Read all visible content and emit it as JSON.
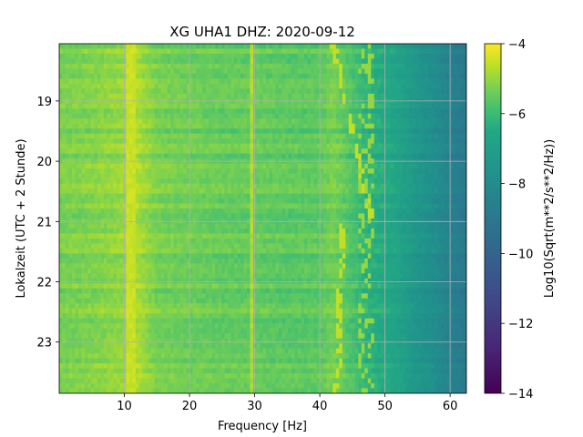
{
  "chart_data": {
    "type": "heatmap",
    "title": "XG UHA1  DHZ: 2020-09-12",
    "xlabel": "Frequency [Hz]",
    "ylabel": "Lokalzeit (UTC + 2 Stunde)",
    "xlim": [
      0,
      62.5
    ],
    "ylim": [
      18.05,
      23.85
    ],
    "y_inverted": true,
    "x_ticks": [
      10,
      20,
      30,
      40,
      50,
      60
    ],
    "y_ticks": [
      19,
      20,
      21,
      22,
      23
    ],
    "grid": true,
    "colorbar": {
      "label": "Log10(Sqrt(m**2/s**2/Hz))",
      "range": [
        -14,
        -4
      ],
      "ticks": [
        -14,
        -12,
        -10,
        -8,
        -6,
        -4
      ],
      "colormap": "viridis"
    },
    "approximate_level_by_frequency": {
      "frequency_hz": [
        0,
        5,
        10,
        11,
        12,
        15,
        20,
        25,
        30,
        35,
        40,
        42,
        45,
        47,
        50,
        52,
        55,
        58,
        60,
        62.5
      ],
      "log10_amplitude": [
        -5.3,
        -5.2,
        -5.0,
        -4.5,
        -4.8,
        -5.3,
        -5.4,
        -5.5,
        -5.5,
        -5.6,
        -5.6,
        -5.3,
        -5.8,
        -6.2,
        -6.5,
        -6.8,
        -7.5,
        -8.0,
        -8.5,
        -9.0
      ]
    },
    "features": {
      "line_near_11hz": -4.5,
      "line_near_29_5hz": -4.8,
      "wandering_line_42_to_48hz": -4.6
    }
  }
}
